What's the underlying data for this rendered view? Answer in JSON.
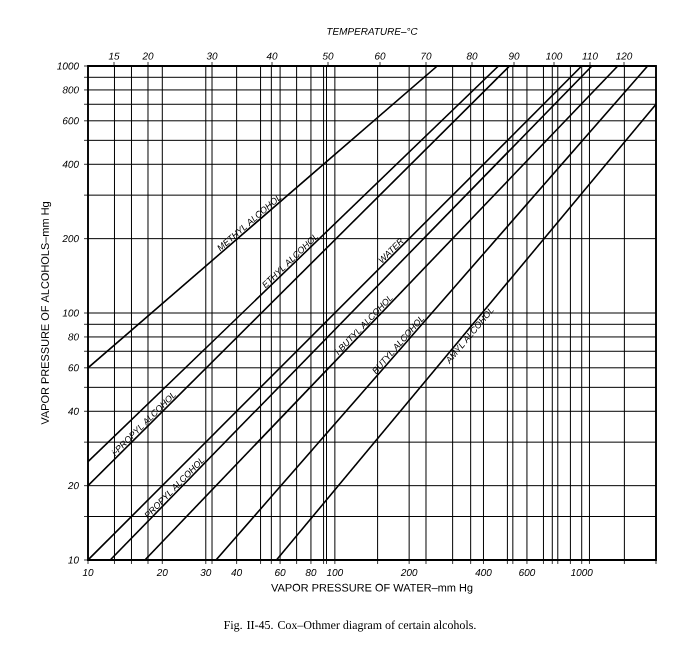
{
  "chart_data": {
    "type": "line",
    "xlabel": "VAPOR PRESSURE OF WATER–mm Hg",
    "ylabel": "VAPOR PRESSURE OF ALCOHOLS–mm Hg",
    "x2label": "TEMPERATURE–°C",
    "annotations": [
      "Fig. II-45. Cox–Othmer diagram of certain alcohols.",
      "15",
      "20",
      "30",
      "40",
      "50",
      "60",
      "70",
      "80",
      "90",
      "100",
      "110",
      "120"
    ],
    "log": "xy",
    "grid": true,
    "marker": "none",
    "line_style": "solid",
    "xlim": [
      10,
      2000
    ],
    "ylim": [
      10,
      1000
    ],
    "xticks": [
      10,
      {
        "value": 12.8,
        "label": null
      },
      {
        "value": 15,
        "label": null
      },
      {
        "value": 17.5,
        "label": null
      },
      20,
      30,
      {
        "value": 31.8,
        "label": null
      },
      40,
      {
        "value": 50,
        "label": null
      },
      {
        "value": 55.3,
        "label": null
      },
      60,
      {
        "value": 70,
        "label": null
      },
      80,
      {
        "value": 90,
        "label": null
      },
      {
        "value": 92.5,
        "label": null
      },
      100,
      {
        "value": 149,
        "label": null
      },
      200,
      {
        "value": 234,
        "label": null
      },
      {
        "value": 300,
        "label": null
      },
      {
        "value": 355,
        "label": null
      },
      400,
      {
        "value": 500,
        "label": null
      },
      {
        "value": 526,
        "label": null
      },
      600,
      {
        "value": 700,
        "label": null
      },
      {
        "value": 760,
        "label": null
      },
      {
        "value": 800,
        "label": null
      },
      {
        "value": 900,
        "label": null
      },
      1000,
      {
        "value": 1075,
        "label": null
      },
      {
        "value": 1489,
        "label": null
      },
      {
        "value": 2000,
        "label": null
      }
    ],
    "yticks": [
      10,
      {
        "value": 15,
        "label": null
      },
      20,
      {
        "value": 30,
        "label": null
      },
      40,
      {
        "value": 50,
        "label": null
      },
      60,
      {
        "value": 70,
        "label": null
      },
      80,
      {
        "value": 90,
        "label": null
      },
      100,
      200,
      {
        "value": 300,
        "label": null
      },
      400,
      {
        "value": 500,
        "label": null
      },
      600,
      {
        "value": 700,
        "label": null
      },
      800,
      {
        "value": 900,
        "label": null
      },
      1000
    ],
    "series": [
      {
        "name": "METHYL ALCOHOL",
        "color": "#000000",
        "x": [
          10,
          260
        ],
        "values": [
          60,
          1000
        ]
      },
      {
        "name": "ETHYL ALCOHOL",
        "color": "#000000",
        "x": [
          10,
          460
        ],
        "values": [
          25,
          1000
        ]
      },
      {
        "name": "i-PROPYL ALCOHOL",
        "color": "#000000",
        "x": [
          10,
          510
        ],
        "values": [
          20,
          1000
        ]
      },
      {
        "name": "WATER",
        "color": "#000000",
        "x": [
          10,
          1000
        ],
        "values": [
          10,
          1000
        ]
      },
      {
        "name": "PROPYL ALCOHOL",
        "color": "#000000",
        "x": [
          12.3,
          1100
        ],
        "values": [
          10,
          1000
        ]
      },
      {
        "name": "i-BUTYL ALCOHOL",
        "color": "#000000",
        "x": [
          17,
          1400
        ],
        "values": [
          10,
          1000
        ]
      },
      {
        "name": "BUTYL ALCOHOL",
        "color": "#000000",
        "x": [
          33,
          1850
        ],
        "values": [
          10,
          1000
        ]
      },
      {
        "name": "AMYL ALCOHOL",
        "color": "#000000",
        "x": [
          58,
          2000
        ],
        "values": [
          10,
          700
        ]
      }
    ]
  }
}
